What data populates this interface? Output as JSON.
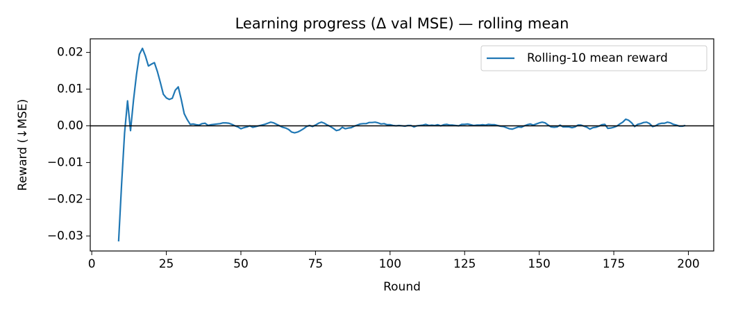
{
  "chart_data": {
    "type": "line",
    "title": "Learning progress (Δ val MSE) — rolling mean",
    "x_label": "Round",
    "y_label": "Reward (↓MSE)",
    "x": [
      9,
      10,
      11,
      12,
      13,
      14,
      15,
      16,
      17,
      18,
      19,
      20,
      21,
      22,
      23,
      24,
      25,
      26,
      27,
      28,
      29,
      30,
      31,
      32,
      33,
      34,
      35,
      36,
      37,
      38,
      39,
      40,
      41,
      42,
      43,
      44,
      45,
      46,
      47,
      48,
      49,
      50,
      51,
      52,
      53,
      54,
      55,
      56,
      57,
      58,
      59,
      60,
      61,
      62,
      63,
      64,
      65,
      66,
      67,
      68,
      69,
      70,
      71,
      72,
      73,
      74,
      75,
      76,
      77,
      78,
      79,
      80,
      81,
      82,
      83,
      84,
      85,
      86,
      87,
      88,
      89,
      90,
      91,
      92,
      93,
      94,
      95,
      96,
      97,
      98,
      99,
      100,
      101,
      102,
      103,
      104,
      105,
      106,
      107,
      108,
      109,
      110,
      111,
      112,
      113,
      114,
      115,
      116,
      117,
      118,
      119,
      120,
      121,
      122,
      123,
      124,
      125,
      126,
      127,
      128,
      129,
      130,
      131,
      132,
      133,
      134,
      135,
      136,
      137,
      138,
      139,
      140,
      141,
      142,
      143,
      144,
      145,
      146,
      147,
      148,
      149,
      150,
      151,
      152,
      153,
      154,
      155,
      156,
      157,
      158,
      159,
      160,
      161,
      162,
      163,
      164,
      165,
      166,
      167,
      168,
      169,
      170,
      171,
      172,
      173,
      174,
      175,
      176,
      177,
      178,
      179,
      180,
      181,
      182,
      183,
      184,
      185,
      186,
      187,
      188,
      189,
      190,
      191,
      192,
      193,
      194,
      195,
      196,
      197,
      198,
      199
    ],
    "series": [
      {
        "name": "Rolling-10 mean reward",
        "color": "#1f77b4",
        "values": [
          -0.0315,
          -0.016,
          -0.002,
          0.0068,
          -0.0013,
          0.007,
          0.014,
          0.0195,
          0.0211,
          0.019,
          0.0163,
          0.0168,
          0.0172,
          0.0148,
          0.0118,
          0.0086,
          0.0076,
          0.0072,
          0.0075,
          0.0097,
          0.0106,
          0.0072,
          0.0033,
          0.0017,
          0.0004,
          0.0005,
          0.0003,
          0.0002,
          0.0006,
          0.0007,
          0.0001,
          0.0003,
          0.0004,
          0.0005,
          0.0006,
          0.0008,
          0.0008,
          0.0007,
          0.0004,
          0.0,
          -0.0003,
          -0.0008,
          -0.0005,
          -0.0003,
          0.0,
          -0.0004,
          -0.0002,
          0.0,
          0.0002,
          0.0004,
          0.0007,
          0.001,
          0.0008,
          0.0004,
          0.0,
          -0.0004,
          -0.0006,
          -0.001,
          -0.0017,
          -0.0019,
          -0.0017,
          -0.0013,
          -0.0008,
          -0.0002,
          0.0001,
          -0.0002,
          0.0002,
          0.0007,
          0.001,
          0.0007,
          0.0002,
          -0.0002,
          -0.0007,
          -0.0013,
          -0.0011,
          -0.0004,
          -0.0008,
          -0.0006,
          -0.0005,
          -0.0001,
          0.0002,
          0.0005,
          0.0006,
          0.0006,
          0.0009,
          0.0009,
          0.001,
          0.0008,
          0.0005,
          0.0006,
          0.0003,
          0.0003,
          0.0001,
          0.0,
          0.0001,
          0.0,
          -0.0001,
          0.0001,
          0.0001,
          -0.0003,
          0.0,
          0.0001,
          0.0002,
          0.0004,
          0.0001,
          0.0002,
          0.0001,
          0.0003,
          0.0,
          0.0003,
          0.0004,
          0.0002,
          0.0002,
          0.0001,
          0.0,
          0.0004,
          0.0004,
          0.0005,
          0.0003,
          0.0001,
          0.0002,
          0.0002,
          0.0003,
          0.0002,
          0.0004,
          0.0003,
          0.0003,
          0.0001,
          -0.0001,
          -0.0002,
          -0.0005,
          -0.0008,
          -0.0009,
          -0.0006,
          -0.0003,
          -0.0004,
          0.0,
          0.0003,
          0.0005,
          0.0002,
          0.0005,
          0.0008,
          0.001,
          0.0008,
          0.0002,
          -0.0003,
          -0.0004,
          -0.0003,
          0.0002,
          -0.0003,
          -0.0003,
          -0.0003,
          -0.0005,
          -0.0003,
          0.0002,
          0.0002,
          -0.0001,
          -0.0004,
          -0.0009,
          -0.0005,
          -0.0004,
          -0.0001,
          0.0003,
          0.0004,
          -0.0007,
          -0.0006,
          -0.0004,
          -0.0001,
          0.0005,
          0.001,
          0.0018,
          0.0015,
          0.0008,
          -0.0002,
          0.0004,
          0.0006,
          0.0009,
          0.001,
          0.0006,
          -0.0002,
          0.0,
          0.0005,
          0.0007,
          0.0007,
          0.001,
          0.0008,
          0.0004,
          0.0002,
          -0.0001,
          -0.0001,
          0.0001
        ]
      }
    ],
    "hlines": [
      0
    ],
    "xlim": [
      -0.5,
      208.5
    ],
    "ylim": [
      -0.0341,
      0.0237
    ],
    "xticks": [
      0,
      25,
      50,
      75,
      100,
      125,
      150,
      175,
      200
    ],
    "yticks": [
      {
        "value": -0.03,
        "label": "−0.03"
      },
      {
        "value": -0.02,
        "label": "−0.02"
      },
      {
        "value": -0.01,
        "label": "−0.01"
      },
      {
        "value": 0,
        "label": "0.00"
      },
      0.01,
      0.02
    ],
    "legend": "upper right",
    "grid": false
  }
}
